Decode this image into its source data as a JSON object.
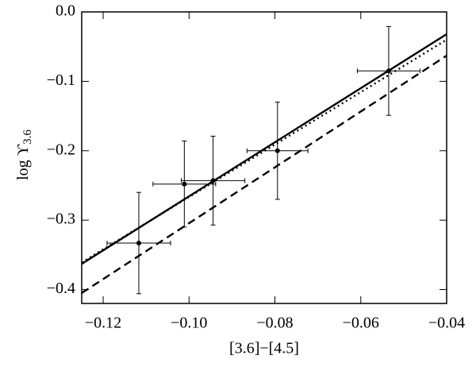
{
  "chart_data": {
    "type": "scatter",
    "xlabel": "[3.6]−[4.5]",
    "ylabel": {
      "text": "log ϒ",
      "subscript": "3.6"
    },
    "xlim": [
      -0.125,
      -0.04
    ],
    "ylim": [
      -0.42,
      0
    ],
    "xticks": [
      {
        "value": -0.12,
        "label": "−0.12"
      },
      {
        "value": -0.1,
        "label": "−0.10"
      },
      {
        "value": -0.08,
        "label": "−0.08"
      },
      {
        "value": -0.06,
        "label": "−0.06"
      },
      {
        "value": -0.04,
        "label": "−0.04"
      }
    ],
    "yticks": [
      {
        "value": 0,
        "label": "0.0"
      },
      {
        "value": -0.1,
        "label": "−0.1"
      },
      {
        "value": -0.2,
        "label": "−0.2"
      },
      {
        "value": -0.3,
        "label": "−0.3"
      },
      {
        "value": -0.4,
        "label": "−0.4"
      }
    ],
    "series": [
      {
        "type": "errorbar",
        "color": "#000000",
        "x": [
          -0.1117,
          -0.1011,
          -0.0944,
          -0.0794,
          -0.0535
        ],
        "values": [
          -0.333,
          -0.248,
          -0.243,
          -0.2,
          -0.085
        ],
        "xerr": [
          0.0074,
          0.0073,
          0.0074,
          0.0071,
          0.0073
        ],
        "yerr": [
          0.073,
          0.062,
          0.064,
          0.07,
          0.064
        ]
      },
      {
        "type": "line",
        "color": "#000000",
        "dash": "solid",
        "x": [
          -0.125,
          -0.04
        ],
        "values": [
          -0.363,
          -0.032
        ]
      },
      {
        "type": "line",
        "color": "#000000",
        "dash": "dotted",
        "x": [
          -0.125,
          -0.04
        ],
        "values": [
          -0.361,
          -0.04
        ]
      },
      {
        "type": "line",
        "color": "#000000",
        "dash": "dashed",
        "x": [
          -0.125,
          -0.04
        ],
        "values": [
          -0.405,
          -0.063
        ]
      }
    ]
  }
}
